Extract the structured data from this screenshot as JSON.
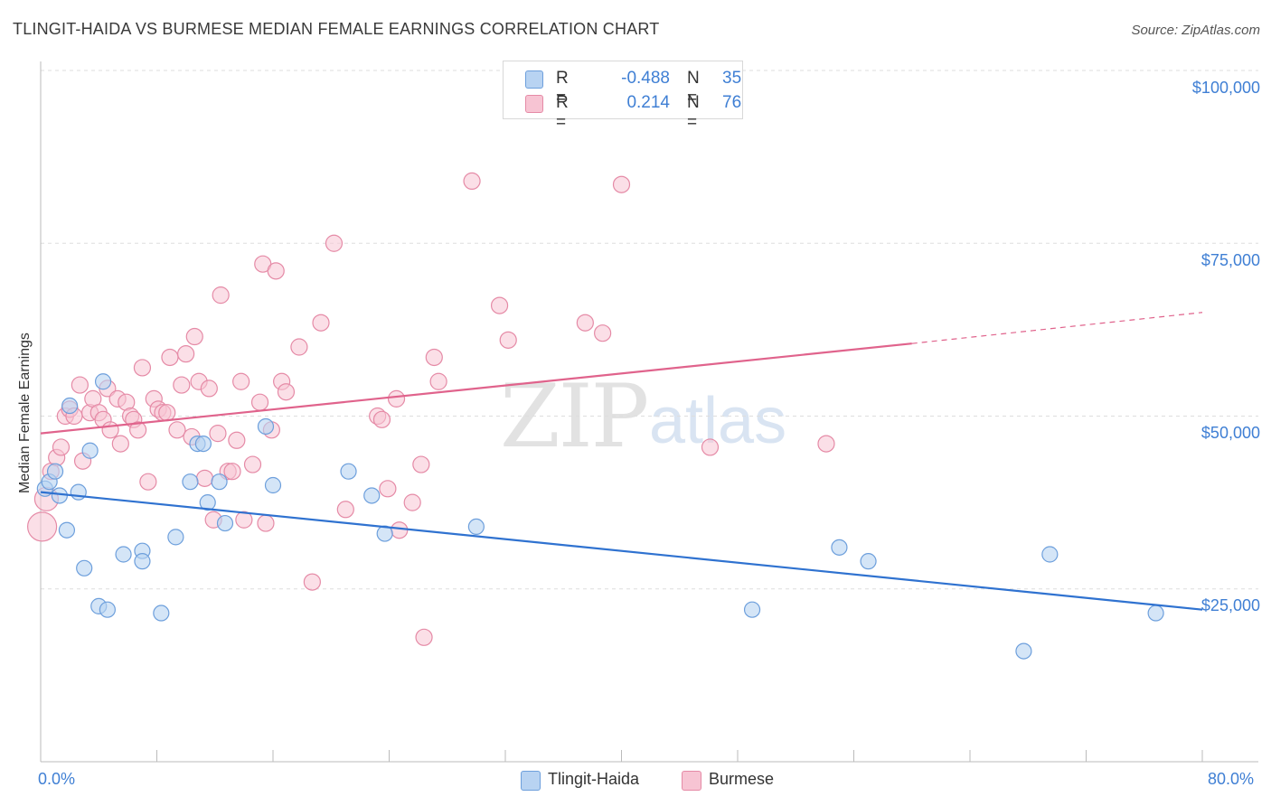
{
  "header": {
    "title": "TLINGIT-HAIDA VS BURMESE MEDIAN FEMALE EARNINGS CORRELATION CHART",
    "source": "Source: ZipAtlas.com"
  },
  "watermark": {
    "zip": "ZIP",
    "atlas": "atlas"
  },
  "colors": {
    "blue_fill": "#b8d3f2",
    "blue_stroke": "#6d9fdc",
    "blue_line": "#2f72d0",
    "pink_fill": "#f7c4d3",
    "pink_stroke": "#e58aa6",
    "pink_line": "#e0638c",
    "tick_text": "#3f7fd4"
  },
  "legend_top": {
    "rows": [
      {
        "r_label": "R =",
        "r_value": "-0.488",
        "n_label": "N =",
        "n_value": "35"
      },
      {
        "r_label": "R =",
        "r_value": "0.214",
        "n_label": "N =",
        "n_value": "76"
      }
    ]
  },
  "legend_bottom": {
    "items": [
      "Tlingit-Haida",
      "Burmese"
    ]
  },
  "chart_data": {
    "type": "scatter",
    "title": "TLINGIT-HAIDA VS BURMESE MEDIAN FEMALE EARNINGS CORRELATION CHART",
    "xlabel": "",
    "ylabel": "Median Female Earnings",
    "xlim": [
      0,
      80
    ],
    "ylim": [
      0,
      105000
    ],
    "x_tick_labels": [
      "0.0%",
      "80.0%"
    ],
    "y_tick_values": [
      25000,
      50000,
      75000,
      100000
    ],
    "y_tick_labels": [
      "$25,000",
      "$50,000",
      "$75,000",
      "$100,000"
    ],
    "grid": true,
    "series": [
      {
        "name": "Tlingit-Haida",
        "r": -0.488,
        "n": 35,
        "trend": {
          "x0": 0,
          "y0": 39000,
          "x1": 80,
          "y1": 22000
        },
        "points": [
          {
            "x": 0.3,
            "y": 39500
          },
          {
            "x": 0.6,
            "y": 40500
          },
          {
            "x": 1.0,
            "y": 42000
          },
          {
            "x": 1.3,
            "y": 38500
          },
          {
            "x": 1.8,
            "y": 33500
          },
          {
            "x": 2.0,
            "y": 51500
          },
          {
            "x": 2.6,
            "y": 39000
          },
          {
            "x": 3.0,
            "y": 28000
          },
          {
            "x": 3.4,
            "y": 45000
          },
          {
            "x": 4.0,
            "y": 22500
          },
          {
            "x": 4.3,
            "y": 55000
          },
          {
            "x": 4.6,
            "y": 22000
          },
          {
            "x": 5.7,
            "y": 30000
          },
          {
            "x": 7.0,
            "y": 30500
          },
          {
            "x": 7.0,
            "y": 29000
          },
          {
            "x": 8.3,
            "y": 21500
          },
          {
            "x": 9.3,
            "y": 32500
          },
          {
            "x": 10.3,
            "y": 40500
          },
          {
            "x": 10.8,
            "y": 46000
          },
          {
            "x": 11.2,
            "y": 46000
          },
          {
            "x": 11.5,
            "y": 37500
          },
          {
            "x": 12.3,
            "y": 40500
          },
          {
            "x": 12.7,
            "y": 34500
          },
          {
            "x": 15.5,
            "y": 48500
          },
          {
            "x": 16.0,
            "y": 40000
          },
          {
            "x": 21.2,
            "y": 42000
          },
          {
            "x": 22.8,
            "y": 38500
          },
          {
            "x": 23.7,
            "y": 33000
          },
          {
            "x": 30.0,
            "y": 34000
          },
          {
            "x": 49.0,
            "y": 22000
          },
          {
            "x": 55.0,
            "y": 31000
          },
          {
            "x": 57.0,
            "y": 29000
          },
          {
            "x": 67.7,
            "y": 16000
          },
          {
            "x": 69.5,
            "y": 30000
          },
          {
            "x": 76.8,
            "y": 21500
          }
        ]
      },
      {
        "name": "Burmese",
        "r": 0.214,
        "n": 76,
        "trend": {
          "x0": 0,
          "y0": 47500,
          "x1": 60,
          "y1": 60500,
          "dash_x1": 80,
          "dash_y1": 65000
        },
        "points": [
          {
            "x": 0.1,
            "y": 34000
          },
          {
            "x": 0.4,
            "y": 38000
          },
          {
            "x": 0.7,
            "y": 42000
          },
          {
            "x": 1.1,
            "y": 44000
          },
          {
            "x": 1.4,
            "y": 45500
          },
          {
            "x": 1.7,
            "y": 50000
          },
          {
            "x": 2.0,
            "y": 51000
          },
          {
            "x": 2.3,
            "y": 50000
          },
          {
            "x": 2.7,
            "y": 54500
          },
          {
            "x": 2.9,
            "y": 43500
          },
          {
            "x": 3.4,
            "y": 50500
          },
          {
            "x": 3.6,
            "y": 52500
          },
          {
            "x": 4.0,
            "y": 50500
          },
          {
            "x": 4.3,
            "y": 49500
          },
          {
            "x": 4.6,
            "y": 54000
          },
          {
            "x": 4.8,
            "y": 48000
          },
          {
            "x": 5.3,
            "y": 52500
          },
          {
            "x": 5.5,
            "y": 46000
          },
          {
            "x": 5.9,
            "y": 52000
          },
          {
            "x": 6.2,
            "y": 50000
          },
          {
            "x": 6.4,
            "y": 49500
          },
          {
            "x": 6.7,
            "y": 48000
          },
          {
            "x": 7.0,
            "y": 57000
          },
          {
            "x": 7.4,
            "y": 40500
          },
          {
            "x": 7.8,
            "y": 52500
          },
          {
            "x": 8.1,
            "y": 51000
          },
          {
            "x": 8.4,
            "y": 50500
          },
          {
            "x": 8.7,
            "y": 50500
          },
          {
            "x": 8.9,
            "y": 58500
          },
          {
            "x": 9.4,
            "y": 48000
          },
          {
            "x": 9.7,
            "y": 54500
          },
          {
            "x": 10.0,
            "y": 59000
          },
          {
            "x": 10.4,
            "y": 47000
          },
          {
            "x": 10.6,
            "y": 61500
          },
          {
            "x": 10.9,
            "y": 55000
          },
          {
            "x": 11.3,
            "y": 41000
          },
          {
            "x": 11.6,
            "y": 54000
          },
          {
            "x": 11.9,
            "y": 35000
          },
          {
            "x": 12.2,
            "y": 47500
          },
          {
            "x": 12.4,
            "y": 67500
          },
          {
            "x": 12.9,
            "y": 42000
          },
          {
            "x": 13.2,
            "y": 42000
          },
          {
            "x": 13.5,
            "y": 46500
          },
          {
            "x": 13.8,
            "y": 55000
          },
          {
            "x": 14.0,
            "y": 35000
          },
          {
            "x": 14.6,
            "y": 43000
          },
          {
            "x": 15.1,
            "y": 52000
          },
          {
            "x": 15.3,
            "y": 72000
          },
          {
            "x": 15.5,
            "y": 34500
          },
          {
            "x": 15.9,
            "y": 48000
          },
          {
            "x": 16.2,
            "y": 71000
          },
          {
            "x": 16.6,
            "y": 55000
          },
          {
            "x": 16.9,
            "y": 53500
          },
          {
            "x": 17.8,
            "y": 60000
          },
          {
            "x": 18.7,
            "y": 26000
          },
          {
            "x": 19.3,
            "y": 63500
          },
          {
            "x": 20.2,
            "y": 75000
          },
          {
            "x": 21.0,
            "y": 36500
          },
          {
            "x": 23.2,
            "y": 50000
          },
          {
            "x": 23.5,
            "y": 49500
          },
          {
            "x": 23.9,
            "y": 39500
          },
          {
            "x": 24.5,
            "y": 52500
          },
          {
            "x": 24.7,
            "y": 33500
          },
          {
            "x": 25.6,
            "y": 37500
          },
          {
            "x": 26.2,
            "y": 43000
          },
          {
            "x": 26.4,
            "y": 18000
          },
          {
            "x": 27.1,
            "y": 58500
          },
          {
            "x": 27.4,
            "y": 55000
          },
          {
            "x": 29.7,
            "y": 84000
          },
          {
            "x": 31.6,
            "y": 66000
          },
          {
            "x": 32.2,
            "y": 61000
          },
          {
            "x": 37.5,
            "y": 63500
          },
          {
            "x": 38.7,
            "y": 62000
          },
          {
            "x": 40.0,
            "y": 83500
          },
          {
            "x": 46.1,
            "y": 45500
          },
          {
            "x": 54.1,
            "y": 46000
          }
        ]
      }
    ]
  }
}
